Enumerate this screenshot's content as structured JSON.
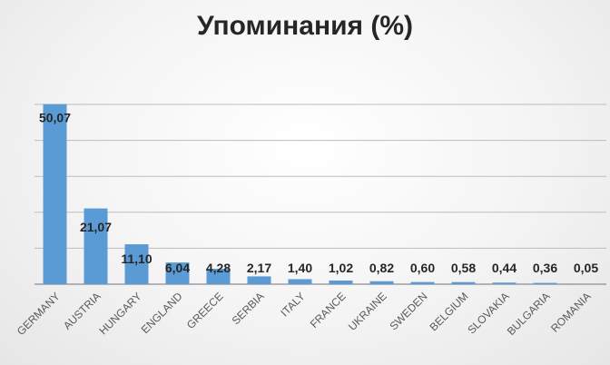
{
  "chart_data": {
    "type": "bar",
    "title": "Упоминания (%)",
    "categories": [
      "GERMANY",
      "AUSTRIA",
      "HUNGARY",
      "ENGLAND",
      "GREECE",
      "SERBIA",
      "ITALY",
      "FRANCE",
      "UKRAINE",
      "SWEDEN",
      "BELGIUM",
      "SLOVAKIA",
      "BULGARIA",
      "ROMANIA"
    ],
    "values": [
      50.07,
      21.07,
      11.1,
      6.04,
      4.28,
      2.17,
      1.4,
      1.02,
      0.82,
      0.6,
      0.58,
      0.44,
      0.36,
      0.05
    ],
    "data_labels": [
      "50,07",
      "21,07",
      "11,10",
      "6,04",
      "4,28",
      "2,17",
      "1,40",
      "1,02",
      "0,82",
      "0,60",
      "0,58",
      "0,44",
      "0,36",
      "0,05"
    ],
    "xlabel": "",
    "ylabel": "",
    "ylim": [
      0,
      50
    ],
    "grid": true,
    "bar_color": "#5b9bd5"
  }
}
